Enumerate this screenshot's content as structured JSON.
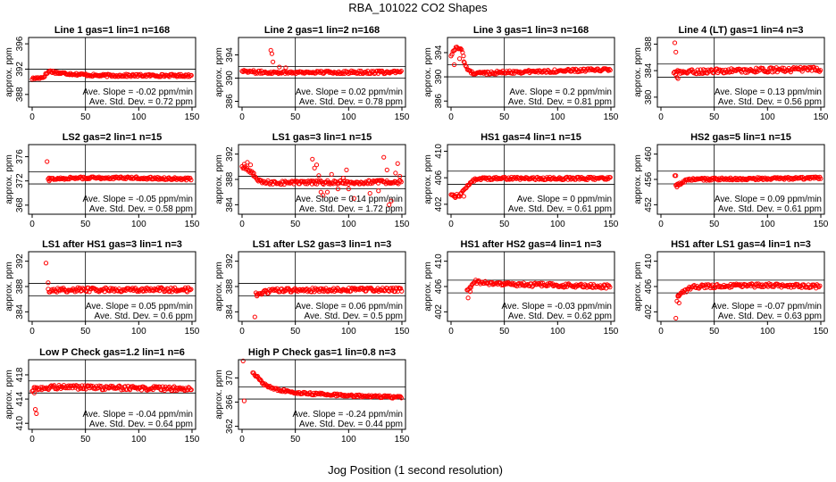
{
  "figure": {
    "title": "RBA_101022  CO2 Shapes",
    "xlabel": "Jog Position (1 second resolution)"
  },
  "colors": {
    "points": "#ff0000",
    "axes": "#000000",
    "background": "#ffffff"
  },
  "chart_data": [
    {
      "type": "scatter",
      "title": "Line 1 gas=1 lin=1 n=168",
      "ylabel": "approx. ppm",
      "xlim": [
        0,
        150
      ],
      "ylim": [
        386,
        397
      ],
      "xticks": [
        0,
        50,
        100,
        150
      ],
      "yticks": [
        388,
        392,
        396
      ],
      "vline": 50,
      "hlines": [
        390,
        392
      ],
      "slope_text": "Ave. Slope = -0.02  ppm/min",
      "std_text": "Ave. Std. Dev. = 0.72  ppm",
      "profile": [
        [
          0,
          390.5
        ],
        [
          10,
          390.7
        ],
        [
          16,
          391.7
        ],
        [
          25,
          391.4
        ],
        [
          60,
          391.0
        ],
        [
          150,
          391.0
        ]
      ],
      "noise": 0.2,
      "outliers": []
    },
    {
      "type": "scatter",
      "title": "Line 2 gas=1 lin=2 n=168",
      "ylabel": "approx. ppm",
      "xlim": [
        0,
        150
      ],
      "ylim": [
        385,
        397
      ],
      "xticks": [
        0,
        50,
        100,
        150
      ],
      "yticks": [
        386,
        390,
        394
      ],
      "vline": 50,
      "hlines": [
        390,
        392
      ],
      "slope_text": "Ave. Slope = 0.02  ppm/min",
      "std_text": "Ave. Std. Dev. = 0.78  ppm",
      "profile": [
        [
          0,
          391.3
        ],
        [
          15,
          391.0
        ],
        [
          30,
          391.0
        ],
        [
          60,
          391.0
        ],
        [
          150,
          391.0
        ]
      ],
      "noise": 0.25,
      "outliers": [
        [
          27,
          394.8
        ],
        [
          28,
          394.2
        ],
        [
          29,
          392.8
        ],
        [
          35,
          391.9
        ],
        [
          41,
          391.8
        ]
      ]
    },
    {
      "type": "scatter",
      "title": "Line 3 gas=1 lin=3 n=168",
      "ylabel": "approx. ppm",
      "xlim": [
        0,
        150
      ],
      "ylim": [
        385,
        396.5
      ],
      "xticks": [
        0,
        50,
        100,
        150
      ],
      "yticks": [
        386,
        390,
        394
      ],
      "vline": 50,
      "hlines": [
        390,
        392
      ],
      "slope_text": "Ave. Slope = 0.2  ppm/min",
      "std_text": "Ave. Std. Dev. = 0.81  ppm",
      "profile": [
        [
          0,
          393.5
        ],
        [
          5,
          395.0
        ],
        [
          10,
          394.5
        ],
        [
          14,
          391.5
        ],
        [
          20,
          390.6
        ],
        [
          60,
          390.8
        ],
        [
          150,
          391.2
        ]
      ],
      "noise": 0.25,
      "outliers": [
        [
          3,
          392.0
        ],
        [
          8,
          393.0
        ],
        [
          12,
          392.5
        ]
      ]
    },
    {
      "type": "scatter",
      "title": "Line 4 (LT) gas=1 lin=4 n=3",
      "ylabel": "approx. ppm",
      "xlim": [
        0,
        150
      ],
      "ylim": [
        378.5,
        389
      ],
      "xticks": [
        0,
        50,
        100,
        150
      ],
      "yticks": [
        380,
        384,
        388
      ],
      "vline": 50,
      "hlines": [
        383,
        385
      ],
      "slope_text": "Ave. Slope = 0.13  ppm/min",
      "std_text": "Ave. Std. Dev. = 0.56  ppm",
      "profile": [
        [
          12,
          383.7
        ],
        [
          40,
          383.9
        ],
        [
          100,
          384.1
        ],
        [
          150,
          384.2
        ]
      ],
      "noise": 0.35,
      "outliers": [
        [
          13,
          388.2
        ],
        [
          14,
          386.8
        ],
        [
          15,
          383.0
        ],
        [
          16,
          382.8
        ]
      ]
    },
    {
      "type": "scatter",
      "title": "LS2 gas=2 lin=1 n=15",
      "ylabel": "approx. ppm",
      "xlim": [
        0,
        150
      ],
      "ylim": [
        366.5,
        378
      ],
      "xticks": [
        0,
        50,
        100,
        150
      ],
      "yticks": [
        368,
        372,
        376
      ],
      "vline": 50,
      "hlines": [
        371.5,
        373.5
      ],
      "slope_text": "Ave. Slope = -0.05  ppm/min",
      "std_text": "Ave. Std. Dev. = 0.58  ppm",
      "profile": [
        [
          15,
          372.3
        ],
        [
          40,
          372.5
        ],
        [
          100,
          372.5
        ],
        [
          150,
          372.3
        ]
      ],
      "noise": 0.2,
      "outliers": [
        [
          14,
          375.2
        ],
        [
          16,
          372.0
        ]
      ]
    },
    {
      "type": "scatter",
      "title": "LS1 gas=3 lin=1 n=15",
      "ylabel": "approx. ppm",
      "xlim": [
        0,
        150
      ],
      "ylim": [
        382.5,
        393.5
      ],
      "xticks": [
        0,
        50,
        100,
        150
      ],
      "yticks": [
        384,
        388,
        392
      ],
      "vline": 50,
      "hlines": [
        386.5,
        388.5
      ],
      "slope_text": "Ave. Slope = 0.14  ppm/min",
      "std_text": "Ave. Std. Dev. = 1.72  ppm",
      "profile": [
        [
          0,
          390.0
        ],
        [
          10,
          389.0
        ],
        [
          15,
          387.8
        ],
        [
          20,
          387.5
        ],
        [
          60,
          387.5
        ],
        [
          150,
          387.6
        ]
      ],
      "noise": 0.3,
      "outliers": [
        [
          2,
          390.4
        ],
        [
          5,
          390.7
        ],
        [
          8,
          390.3
        ],
        [
          11,
          389.0
        ],
        [
          66,
          391.2
        ],
        [
          68,
          389.8
        ],
        [
          70,
          390.3
        ],
        [
          72,
          388.6
        ],
        [
          74,
          386.0
        ],
        [
          76,
          385.5
        ],
        [
          80,
          386.0
        ],
        [
          84,
          388.8
        ],
        [
          90,
          386.5
        ],
        [
          95,
          388.2
        ],
        [
          98,
          389.5
        ],
        [
          100,
          386.5
        ],
        [
          105,
          385.0
        ],
        [
          120,
          385.8
        ],
        [
          128,
          386.2
        ],
        [
          133,
          391.5
        ],
        [
          136,
          389.5
        ],
        [
          138,
          384.0
        ],
        [
          140,
          384.6
        ],
        [
          144,
          389.0
        ],
        [
          146,
          390.5
        ],
        [
          148,
          388.5
        ]
      ]
    },
    {
      "type": "scatter",
      "title": "HS1 gas=4 lin=1 n=15",
      "ylabel": "approx. ppm",
      "xlim": [
        0,
        150
      ],
      "ylim": [
        400.5,
        411
      ],
      "xticks": [
        0,
        50,
        100,
        150
      ],
      "yticks": [
        402,
        406,
        410
      ],
      "vline": 50,
      "hlines": [
        405,
        407
      ],
      "slope_text": "Ave. Slope = 0  ppm/min",
      "std_text": "Ave. Std. Dev. = 0.61  ppm",
      "profile": [
        [
          0,
          403.4
        ],
        [
          8,
          403.3
        ],
        [
          14,
          404.5
        ],
        [
          20,
          405.6
        ],
        [
          30,
          405.9
        ],
        [
          150,
          405.9
        ]
      ],
      "noise": 0.2,
      "outliers": [
        [
          4,
          403.0
        ],
        [
          12,
          403.2
        ]
      ]
    },
    {
      "type": "scatter",
      "title": "HS2 gas=5 lin=1 n=15",
      "ylabel": "approx. ppm",
      "xlim": [
        0,
        150
      ],
      "ylim": [
        450.5,
        461.5
      ],
      "xticks": [
        0,
        50,
        100,
        150
      ],
      "yticks": [
        452,
        456,
        460
      ],
      "vline": 50,
      "hlines": [
        455.3,
        457.3
      ],
      "slope_text": "Ave. Slope = 0.09  ppm/min",
      "std_text": "Ave. Std. Dev. = 0.61  ppm",
      "profile": [
        [
          14,
          455.0
        ],
        [
          18,
          455.3
        ],
        [
          25,
          456.0
        ],
        [
          150,
          456.2
        ]
      ],
      "noise": 0.2,
      "outliers": [
        [
          13,
          456.6
        ],
        [
          14,
          456.6
        ],
        [
          15,
          454.8
        ]
      ]
    },
    {
      "type": "scatter",
      "title": "LS1 after HS1 gas=3 lin=1 n=3",
      "ylabel": "approx. ppm",
      "xlim": [
        0,
        150
      ],
      "ylim": [
        382.5,
        393.5
      ],
      "xticks": [
        0,
        50,
        100,
        150
      ],
      "yticks": [
        384,
        388,
        392
      ],
      "vline": 50,
      "hlines": [
        386.5,
        388.5
      ],
      "slope_text": "Ave. Slope = 0.05  ppm/min",
      "std_text": "Ave. Std. Dev. = 0.6  ppm",
      "profile": [
        [
          15,
          387.4
        ],
        [
          40,
          387.5
        ],
        [
          100,
          387.5
        ],
        [
          150,
          387.5
        ]
      ],
      "noise": 0.35,
      "outliers": [
        [
          13,
          391.7
        ],
        [
          15,
          388.6
        ]
      ]
    },
    {
      "type": "scatter",
      "title": "LS1 after LS2 gas=3 lin=1 n=3",
      "ylabel": "approx. ppm",
      "xlim": [
        0,
        150
      ],
      "ylim": [
        382.5,
        393.5
      ],
      "xticks": [
        0,
        50,
        100,
        150
      ],
      "yticks": [
        384,
        388,
        392
      ],
      "vline": 50,
      "hlines": [
        386.5,
        388.5
      ],
      "slope_text": "Ave. Slope = 0.06  ppm/min",
      "std_text": "Ave. Std. Dev. = 0.5  ppm",
      "profile": [
        [
          13,
          386.8
        ],
        [
          30,
          387.4
        ],
        [
          100,
          387.5
        ],
        [
          150,
          387.5
        ]
      ],
      "noise": 0.3,
      "outliers": [
        [
          12,
          383.2
        ],
        [
          14,
          386.5
        ]
      ]
    },
    {
      "type": "scatter",
      "title": "HS1 after HS2 gas=4 lin=1 n=3",
      "ylabel": "approx. ppm",
      "xlim": [
        0,
        150
      ],
      "ylim": [
        400.5,
        411.5
      ],
      "xticks": [
        0,
        50,
        100,
        150
      ],
      "yticks": [
        402,
        406,
        410
      ],
      "vline": 50,
      "hlines": [
        405,
        407
      ],
      "slope_text": "Ave. Slope = -0.03  ppm/min",
      "std_text": "Ave. Std. Dev. = 0.62  ppm",
      "profile": [
        [
          15,
          405.2
        ],
        [
          22,
          406.8
        ],
        [
          40,
          406.4
        ],
        [
          100,
          406.2
        ],
        [
          150,
          406.0
        ]
      ],
      "noise": 0.3,
      "outliers": [
        [
          16,
          404.2
        ],
        [
          18,
          405.2
        ]
      ]
    },
    {
      "type": "scatter",
      "title": "HS1 after LS1 gas=4 lin=1 n=3",
      "ylabel": "approx. ppm",
      "xlim": [
        0,
        150
      ],
      "ylim": [
        400.5,
        411.5
      ],
      "xticks": [
        0,
        50,
        100,
        150
      ],
      "yticks": [
        402,
        406,
        410
      ],
      "vline": 50,
      "hlines": [
        405,
        407
      ],
      "slope_text": "Ave. Slope = -0.07  ppm/min",
      "std_text": "Ave. Std. Dev. = 0.63  ppm",
      "profile": [
        [
          15,
          404.0
        ],
        [
          20,
          405.0
        ],
        [
          30,
          406.0
        ],
        [
          100,
          406.2
        ],
        [
          150,
          406.0
        ]
      ],
      "noise": 0.3,
      "outliers": [
        [
          14,
          401.0
        ],
        [
          16,
          404.6
        ],
        [
          17,
          403.4
        ]
      ]
    },
    {
      "type": "scatter",
      "title": "Low P Check gas=1.2 lin=1 n=6",
      "ylabel": "approx. ppm",
      "xlim": [
        0,
        150
      ],
      "ylim": [
        409,
        420.5
      ],
      "xticks": [
        0,
        50,
        100,
        150
      ],
      "yticks": [
        410,
        414,
        418
      ],
      "vline": 50,
      "hlines": [
        415,
        417
      ],
      "slope_text": "Ave. Slope = -0.04  ppm/min",
      "std_text": "Ave. Std. Dev. = 0.64  ppm",
      "profile": [
        [
          0,
          415.6
        ],
        [
          20,
          416.0
        ],
        [
          100,
          415.8
        ],
        [
          150,
          415.7
        ]
      ],
      "noise": 0.35,
      "outliers": [
        [
          3,
          412.3
        ],
        [
          4,
          411.6
        ],
        [
          2,
          415.0
        ]
      ]
    },
    {
      "type": "scatter",
      "title": "High P Check gas=1 lin=0.8 n=3",
      "ylabel": "approx. ppm",
      "xlim": [
        0,
        150
      ],
      "ylim": [
        361.5,
        373
      ],
      "xticks": [
        0,
        50,
        100,
        150
      ],
      "yticks": [
        362,
        366,
        370
      ],
      "vline": 50,
      "hlines": [
        366.5,
        368.5
      ],
      "slope_text": "Ave. Slope = -0.24  ppm/min",
      "std_text": "Ave. Std. Dev. = 0.44  ppm",
      "profile": [
        [
          10,
          371.0
        ],
        [
          15,
          370.0
        ],
        [
          20,
          369.0
        ],
        [
          30,
          368.2
        ],
        [
          50,
          367.5
        ],
        [
          100,
          367.1
        ],
        [
          150,
          366.8
        ]
      ],
      "noise": 0.2,
      "outliers": [
        [
          1,
          372.8
        ],
        [
          2,
          366.2
        ]
      ]
    }
  ]
}
